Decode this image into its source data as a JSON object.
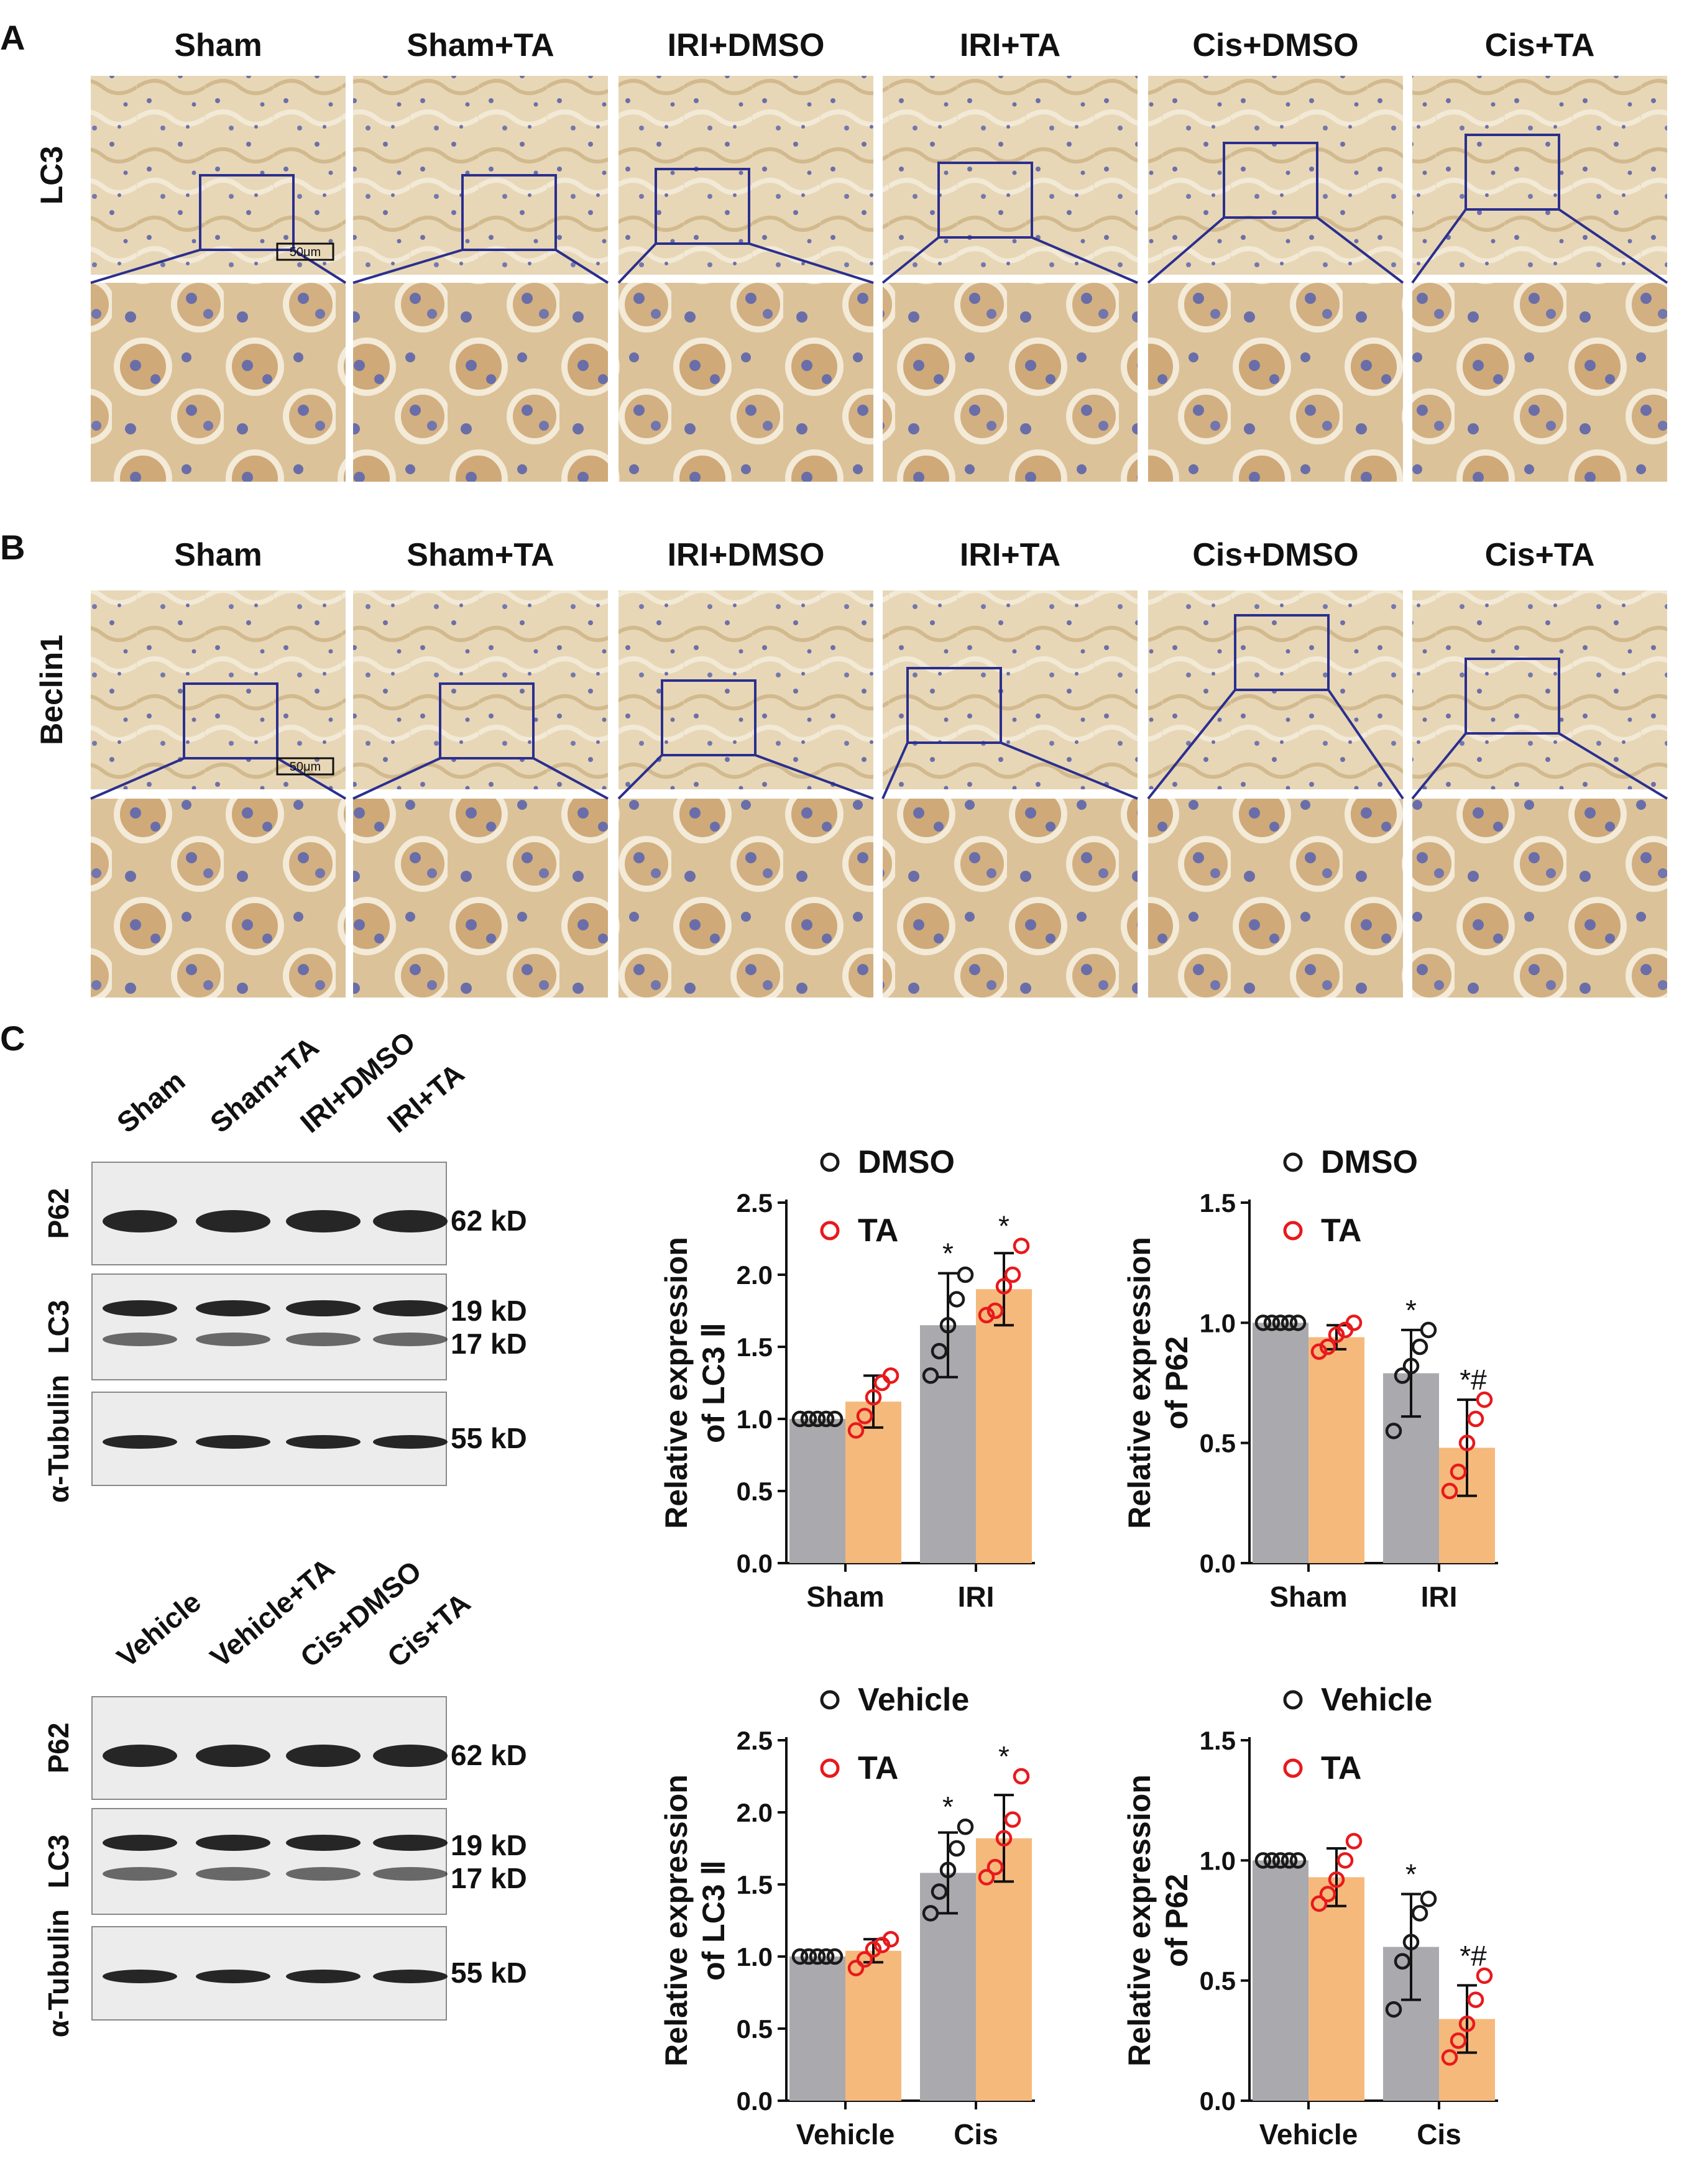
{
  "panel_labels": [
    "A",
    "B",
    "C"
  ],
  "panel_a": {
    "row_label": "LC3",
    "group_labels": [
      "Sham",
      "Sham+TA",
      "IRI+DMSO",
      "IRI+TA",
      "Cis+DMSO",
      "Cis+TA"
    ],
    "scale_bar": "50μm"
  },
  "panel_b": {
    "row_label": "Beclin1",
    "group_labels": [
      "Sham",
      "Sham+TA",
      "IRI+DMSO",
      "IRI+TA",
      "Cis+DMSO",
      "Cis+TA"
    ],
    "scale_bar": "50μm"
  },
  "blots": [
    {
      "lanes": [
        "Sham",
        "Sham+TA",
        "IRI+DMSO",
        "IRI+TA"
      ],
      "proteins": [
        "P62",
        "LC3",
        "α-Tubulin"
      ],
      "markers": [
        "62 kD",
        "19 kD",
        "17 kD",
        "55 kD"
      ]
    },
    {
      "lanes": [
        "Vehicle",
        "Vehicle+TA",
        "Cis+DMSO",
        "Cis+TA"
      ],
      "proteins": [
        "P62",
        "LC3",
        "α-Tubulin"
      ],
      "markers": [
        "62 kD",
        "19 kD",
        "17 kD",
        "55 kD"
      ]
    }
  ],
  "colors": {
    "control_bar": "#a9a9ae",
    "ta_bar": "#f5b97c",
    "control_point": "#1a1a1a",
    "ta_point": "#e8191c",
    "box": "#2b2f8f"
  },
  "chart_data": [
    {
      "type": "bar",
      "ylabel": [
        "Relative expression",
        "of LC3 Ⅱ"
      ],
      "categories": [
        "Sham",
        "IRI"
      ],
      "ylim": [
        0,
        2.5
      ],
      "yticks": [
        "0.0",
        "0.5",
        "1.0",
        "1.5",
        "2.0",
        "2.5"
      ],
      "series": [
        {
          "name": "DMSO",
          "values": [
            1.0,
            1.65
          ],
          "sd": [
            0,
            0.36
          ],
          "points": [
            [
              1,
              1,
              1,
              1,
              1
            ],
            [
              1.3,
              1.47,
              1.65,
              1.83,
              2.0
            ]
          ],
          "annot": [
            "",
            "*"
          ]
        },
        {
          "name": "TA",
          "values": [
            1.12,
            1.9
          ],
          "sd": [
            0.18,
            0.25
          ],
          "points": [
            [
              0.92,
              1.02,
              1.15,
              1.25,
              1.3
            ],
            [
              1.72,
              1.75,
              1.92,
              2.0,
              2.2
            ]
          ],
          "annot": [
            "",
            "*"
          ]
        }
      ]
    },
    {
      "type": "bar",
      "ylabel": [
        "Relative expression",
        "of P62"
      ],
      "categories": [
        "Sham",
        "IRI"
      ],
      "ylim": [
        0,
        1.5
      ],
      "yticks": [
        "0.0",
        "0.5",
        "1.0",
        "1.5"
      ],
      "series": [
        {
          "name": "DMSO",
          "values": [
            1.0,
            0.79
          ],
          "sd": [
            0,
            0.18
          ],
          "points": [
            [
              1,
              1,
              1,
              1,
              1
            ],
            [
              0.55,
              0.78,
              0.82,
              0.9,
              0.97
            ]
          ],
          "annot": [
            "",
            "*"
          ]
        },
        {
          "name": "TA",
          "values": [
            0.94,
            0.48
          ],
          "sd": [
            0.05,
            0.2
          ],
          "points": [
            [
              0.88,
              0.9,
              0.95,
              0.97,
              1.0
            ],
            [
              0.3,
              0.38,
              0.5,
              0.6,
              0.68
            ]
          ],
          "annot": [
            "",
            "*#"
          ]
        }
      ]
    },
    {
      "type": "bar",
      "ylabel": [
        "Relative expression",
        "of LC3 Ⅱ"
      ],
      "categories": [
        "Vehicle",
        "Cis"
      ],
      "ylim": [
        0,
        2.5
      ],
      "yticks": [
        "0.0",
        "0.5",
        "1.0",
        "1.5",
        "2.0",
        "2.5"
      ],
      "series": [
        {
          "name": "Vehicle",
          "values": [
            1.0,
            1.58
          ],
          "sd": [
            0,
            0.28
          ],
          "points": [
            [
              1,
              1,
              1,
              1,
              1
            ],
            [
              1.3,
              1.45,
              1.6,
              1.75,
              1.9
            ]
          ],
          "annot": [
            "",
            "*"
          ]
        },
        {
          "name": "TA",
          "values": [
            1.04,
            1.82
          ],
          "sd": [
            0.08,
            0.3
          ],
          "points": [
            [
              0.92,
              0.98,
              1.05,
              1.08,
              1.12
            ],
            [
              1.55,
              1.62,
              1.82,
              1.95,
              2.25
            ]
          ],
          "annot": [
            "",
            "*"
          ]
        }
      ]
    },
    {
      "type": "bar",
      "ylabel": [
        "Relative expression",
        "of P62"
      ],
      "categories": [
        "Vehicle",
        "Cis"
      ],
      "ylim": [
        0,
        1.5
      ],
      "yticks": [
        "0.0",
        "0.5",
        "1.0",
        "1.5"
      ],
      "series": [
        {
          "name": "Vehicle",
          "values": [
            1.0,
            0.64
          ],
          "sd": [
            0,
            0.22
          ],
          "points": [
            [
              1,
              1,
              1,
              1,
              1
            ],
            [
              0.38,
              0.58,
              0.66,
              0.78,
              0.84
            ]
          ],
          "annot": [
            "",
            "*"
          ]
        },
        {
          "name": "TA",
          "values": [
            0.93,
            0.34
          ],
          "sd": [
            0.12,
            0.14
          ],
          "points": [
            [
              0.82,
              0.86,
              0.92,
              1.0,
              1.08
            ],
            [
              0.18,
              0.25,
              0.32,
              0.42,
              0.52
            ]
          ],
          "annot": [
            "",
            "*#"
          ]
        }
      ]
    }
  ]
}
